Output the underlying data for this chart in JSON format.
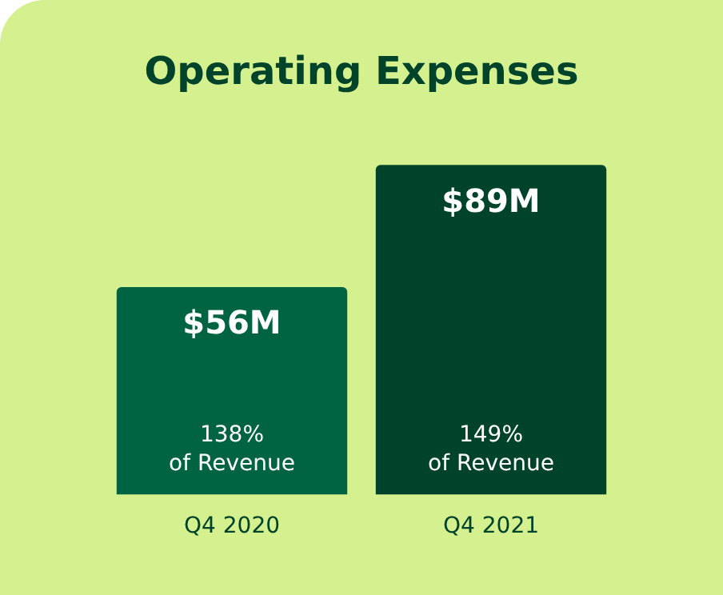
{
  "chart_data": {
    "type": "bar",
    "title": "Operating Expenses",
    "categories": [
      "Q4 2020",
      "Q4 2021"
    ],
    "values": [
      56,
      89
    ],
    "colors": [
      "#006341",
      "#00432b"
    ],
    "value_labels": [
      "$56M",
      "$89M"
    ],
    "annotations": [
      "138% of Revenue",
      "149% of Revenue"
    ],
    "grid": false,
    "legend": false
  }
}
